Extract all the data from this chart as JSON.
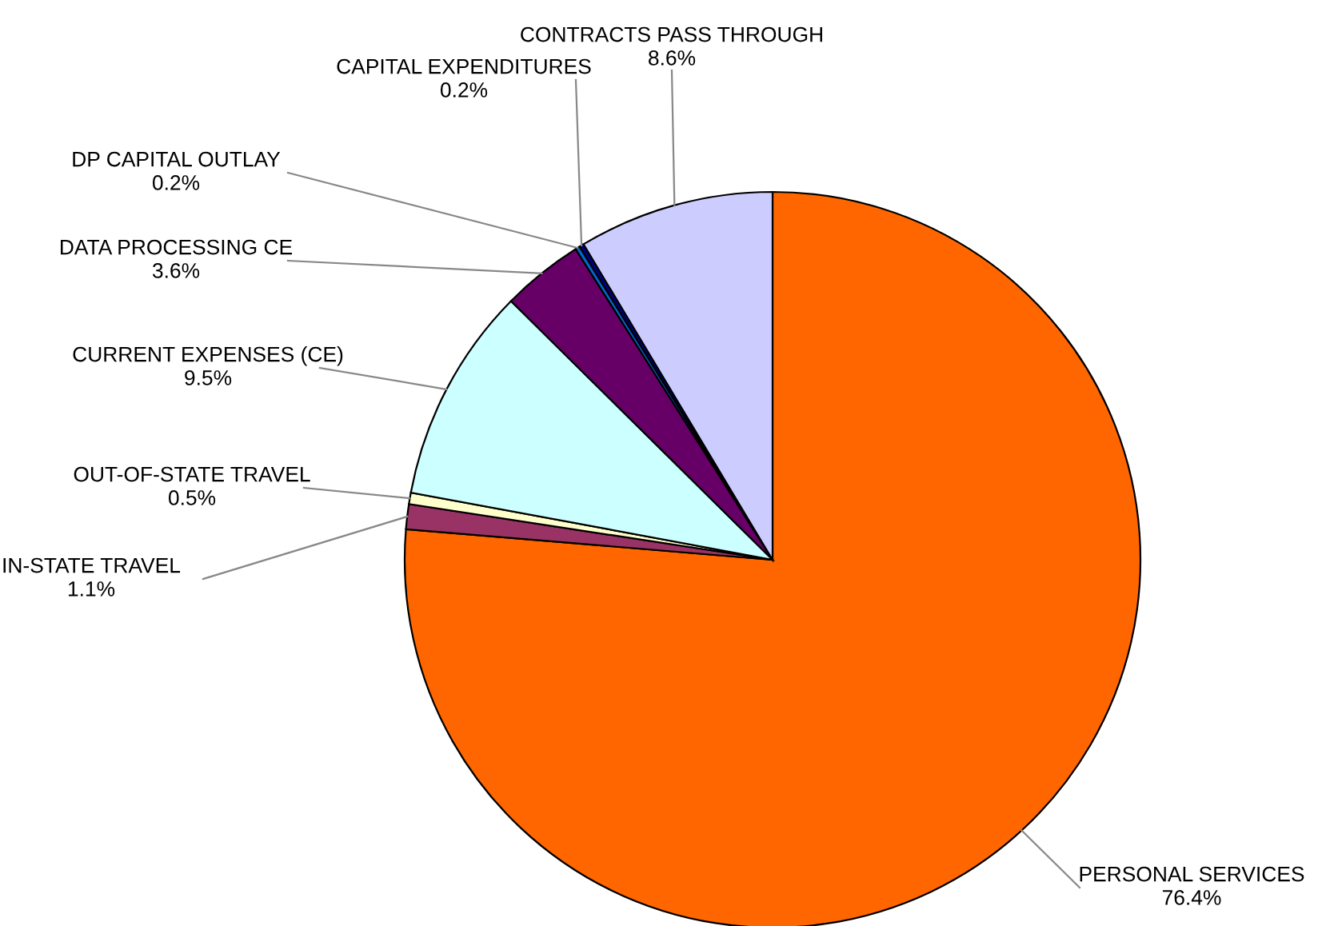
{
  "chart_data": {
    "type": "pie",
    "categories": [
      "PERSONAL SERVICES",
      "IN-STATE TRAVEL",
      "OUT-OF-STATE TRAVEL",
      "CURRENT EXPENSES (CE)",
      "DATA PROCESSING CE",
      "DP CAPITAL OUTLAY",
      "CAPITAL EXPENDITURES",
      "CONTRACTS PASS THROUGH"
    ],
    "values": [
      76.4,
      1.1,
      0.5,
      9.5,
      3.6,
      0.2,
      0.2,
      8.6
    ],
    "colors": [
      "#ff6600",
      "#993366",
      "#ffffcc",
      "#ccffff",
      "#660066",
      "#0066cc",
      "#000080",
      "#ccccff"
    ],
    "value_labels": [
      "76.4%",
      "1.1%",
      "0.5%",
      "9.5%",
      "3.6%",
      "0.2%",
      "0.2%",
      "8.6%"
    ],
    "legend": false
  }
}
